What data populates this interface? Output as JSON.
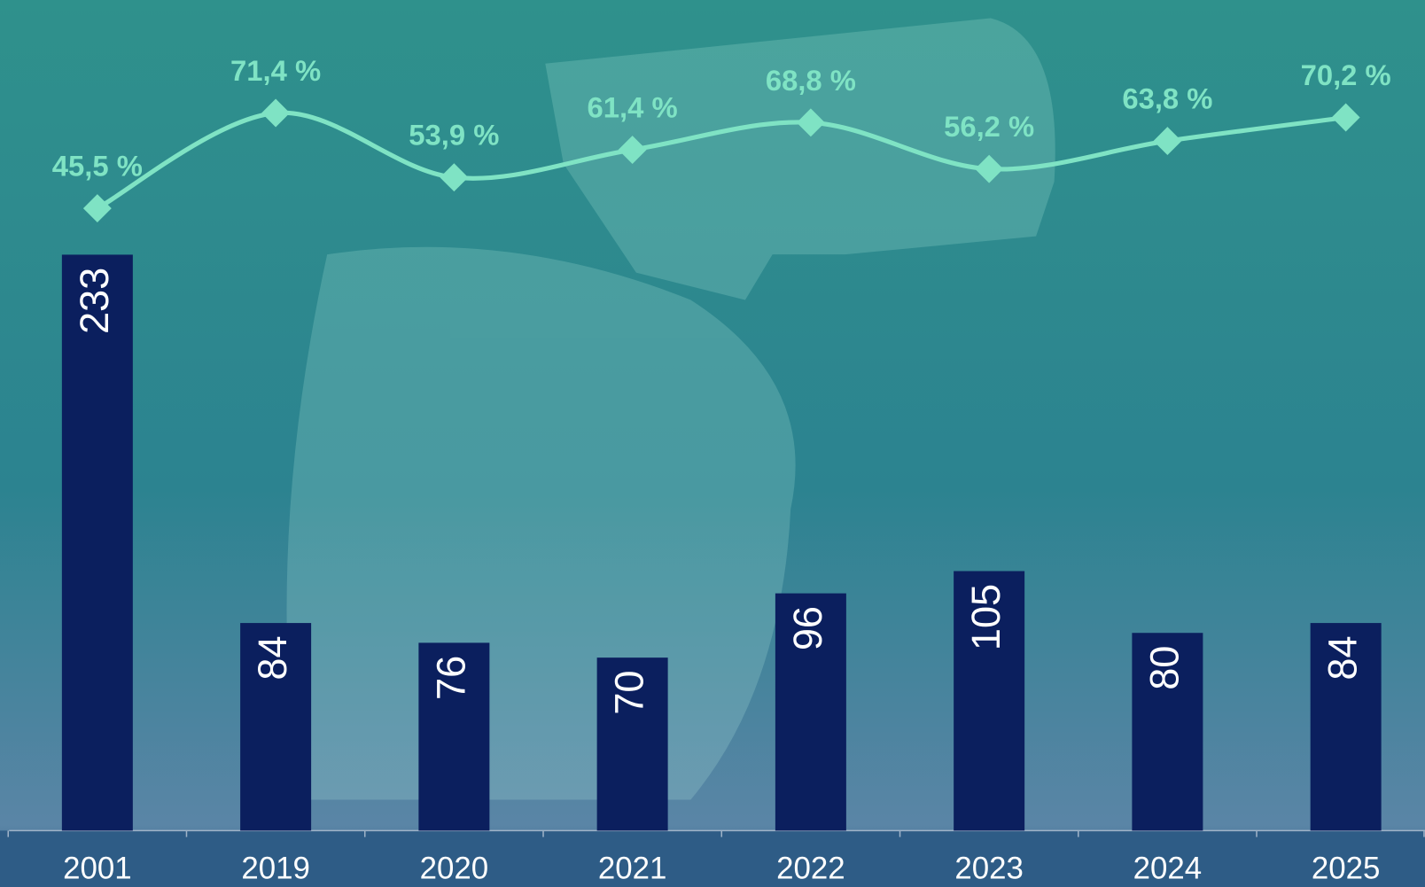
{
  "chart_data": {
    "type": "combo",
    "categories": [
      "2001",
      "2019",
      "2020",
      "2021",
      "2022",
      "2023",
      "2024",
      "2025"
    ],
    "series": [
      {
        "type": "bar",
        "color": "#0b1f5e",
        "values": [
          233,
          84,
          76,
          70,
          96,
          105,
          80,
          84
        ]
      },
      {
        "type": "line",
        "axis": "y2",
        "color": "#7fe3c4",
        "values": [
          45.5,
          71.4,
          53.9,
          61.4,
          68.8,
          56.2,
          63.8,
          70.2
        ],
        "value_labels": [
          "45,5 %",
          "71,4 %",
          "53,9 %",
          "61,4 %",
          "68,8 %",
          "56,2 %",
          "63,8 %",
          "70,2 %"
        ]
      }
    ],
    "ylim": [
      0,
      250
    ],
    "y2lim": [
      0,
      100
    ]
  }
}
